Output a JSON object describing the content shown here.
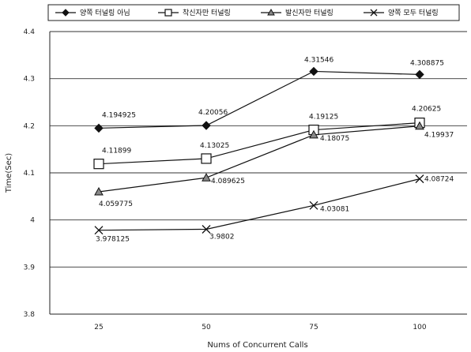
{
  "chart_data": {
    "type": "line",
    "x": [
      "25",
      "50",
      "75",
      "100"
    ],
    "xlabel": "Nums of Concurrent Calls",
    "ylabel": "Time(Sec)",
    "ylim": [
      3.8,
      4.4
    ],
    "yticks": [
      "3.8",
      "3.9",
      "4",
      "4.1",
      "4.2",
      "4.3",
      "4.4"
    ],
    "grid": "horizontal",
    "legend_position": "top",
    "series": [
      {
        "name": "양쪽 터널링 아님",
        "values": [
          4.194925,
          4.20056,
          4.31546,
          4.308875
        ],
        "labels": [
          "4.194925",
          "4.20056",
          "4.31546",
          "4.308875"
        ],
        "marker": "diamond",
        "color": "#111111"
      },
      {
        "name": "착신자만 터널링",
        "values": [
          4.11899,
          4.13025,
          4.19125,
          4.20625
        ],
        "labels": [
          "4.11899",
          "4.13025",
          "4.19125",
          "4.20625"
        ],
        "marker": "square",
        "color": "#111111"
      },
      {
        "name": "발신자만 터널링",
        "values": [
          4.059775,
          4.089625,
          4.18075,
          4.19937
        ],
        "labels": [
          "4.059775",
          "4.089625",
          "4.18075",
          "4.19937"
        ],
        "marker": "triangle",
        "color": "#111111"
      },
      {
        "name": "양쪽 모두 터널링",
        "values": [
          3.978125,
          3.9802,
          4.03081,
          4.08724
        ],
        "labels": [
          "3.978125",
          "3.9802",
          "4.03081",
          "4.08724"
        ],
        "marker": "x",
        "color": "#111111"
      }
    ]
  }
}
